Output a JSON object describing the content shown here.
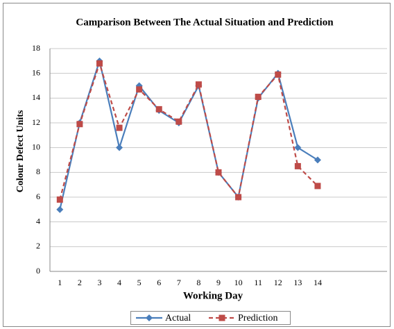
{
  "chart_data": {
    "type": "line",
    "title": "Camparison Between The Actual Situation and Prediction",
    "x_label": "Working Day",
    "y_label": "Colour Defect Units",
    "categories": [
      "1",
      "2",
      "3",
      "4",
      "5",
      "6",
      "7",
      "8",
      "9",
      "10",
      "11",
      "12",
      "13",
      "14",
      null,
      null,
      null
    ],
    "series": [
      {
        "name": "Actual",
        "color": "#4a7ebb",
        "marker": "diamond",
        "dash": false,
        "values": [
          5,
          12,
          17,
          10,
          15,
          13,
          12,
          15,
          8,
          6,
          14,
          16,
          10,
          9,
          null,
          null,
          null
        ]
      },
      {
        "name": "Prediction",
        "color": "#be4b48",
        "marker": "square",
        "dash": true,
        "values": [
          5.8,
          11.9,
          16.8,
          11.6,
          14.7,
          13.1,
          12.1,
          15.1,
          8.0,
          6.0,
          14.1,
          15.9,
          8.5,
          6.9,
          null,
          null,
          null
        ]
      }
    ],
    "ylim": [
      0,
      18
    ],
    "yticks": [
      0,
      2,
      4,
      6,
      8,
      10,
      12,
      14,
      16,
      18
    ],
    "grid": true,
    "legend": "bottom"
  }
}
